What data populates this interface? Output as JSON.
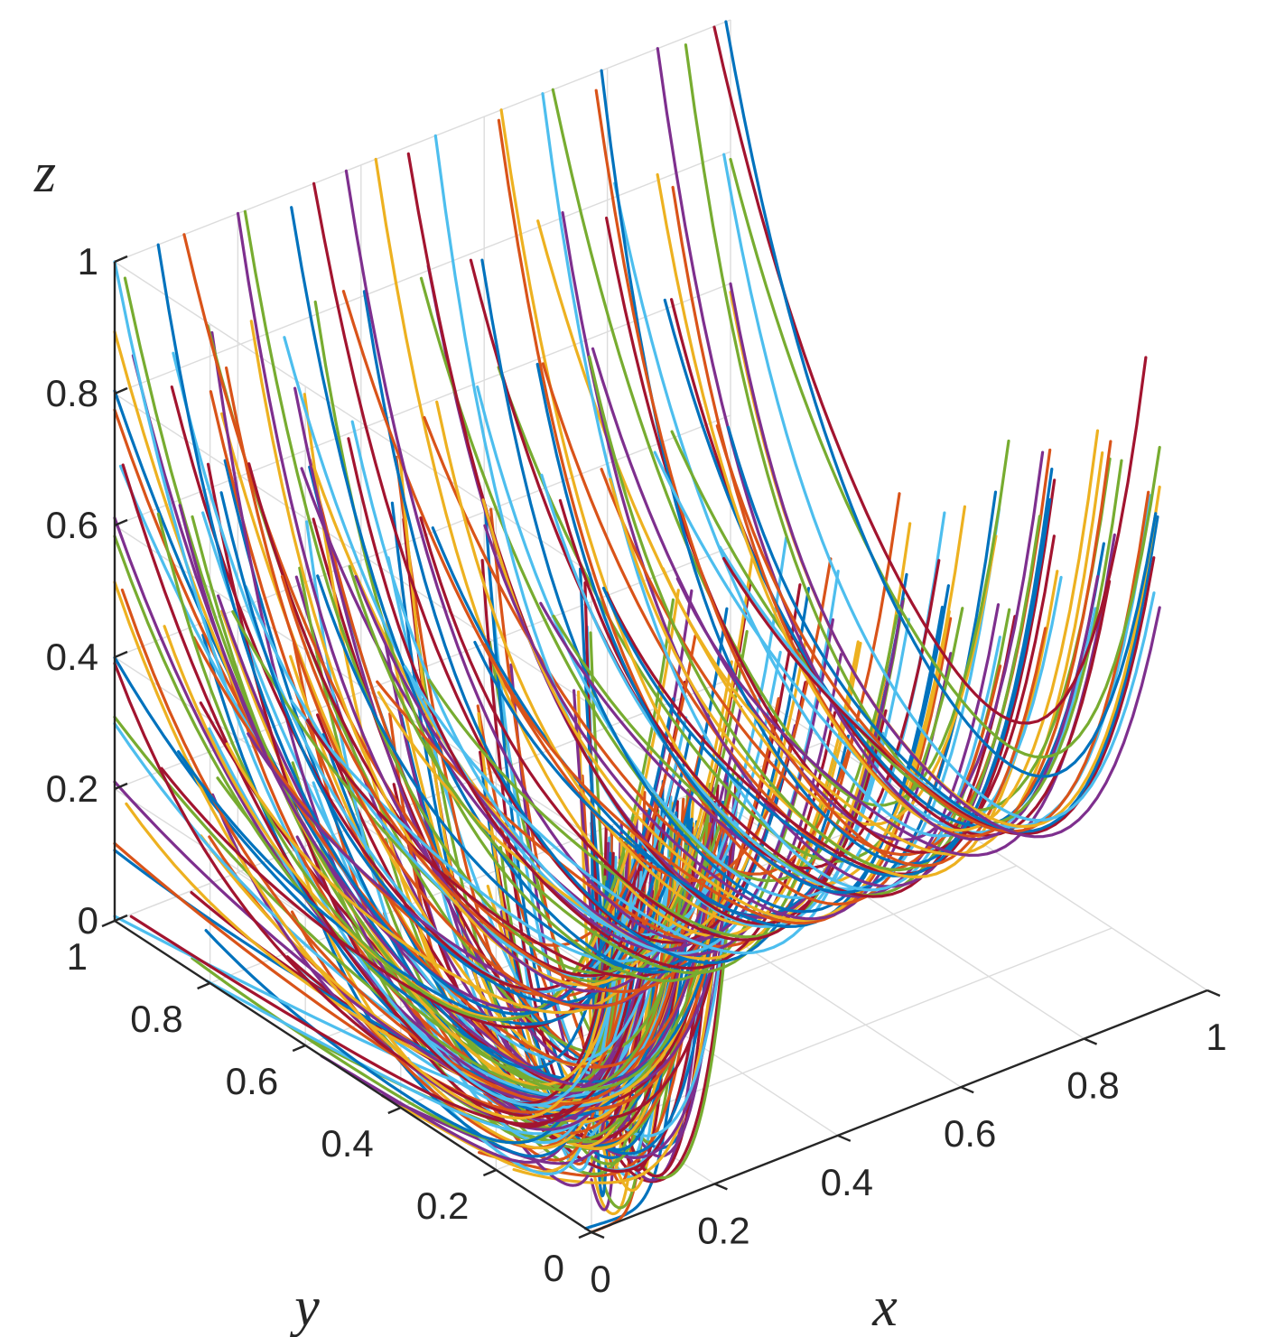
{
  "chart_data": {
    "type": "line",
    "projection": "3d",
    "xlabel": "x",
    "ylabel": "y",
    "zlabel": "z",
    "xlim": [
      0,
      1
    ],
    "ylim": [
      0,
      1
    ],
    "zlim": [
      0,
      1
    ],
    "grid": true,
    "x_ticks": [
      "0",
      "0.2",
      "0.4",
      "0.6",
      "0.8",
      "1"
    ],
    "y_ticks": [
      "0",
      "0.2",
      "0.4",
      "0.6",
      "0.8",
      "1"
    ],
    "z_ticks": [
      "0",
      "0.2",
      "0.4",
      "0.6",
      "0.8",
      "1"
    ],
    "series_colors": [
      "#0072BD",
      "#D95319",
      "#EDB120",
      "#7E2F8E",
      "#77AC30",
      "#4DBEEE",
      "#A2142F"
    ],
    "trajectory_families": [
      {
        "description": "trajectories starting at x=0 that decay in y and z toward the x axis",
        "start_x": 0,
        "start_y": [
          0,
          0.2,
          0.4,
          0.6,
          0.8,
          1.0
        ],
        "start_z": [
          0,
          0.1,
          0.2,
          0.3,
          0.4,
          0.5,
          0.6,
          0.7,
          0.8,
          0.9,
          1.0
        ]
      },
      {
        "description": "trajectories starting at y=1 that decay toward z=0 across x",
        "start_y": 1,
        "start_x": [
          0.1,
          0.2,
          0.3,
          0.4,
          0.5,
          0.6,
          0.7,
          0.8,
          0.9,
          1.0
        ],
        "start_z": [
          0.2,
          0.4,
          0.6,
          0.8,
          1.0
        ]
      }
    ]
  }
}
